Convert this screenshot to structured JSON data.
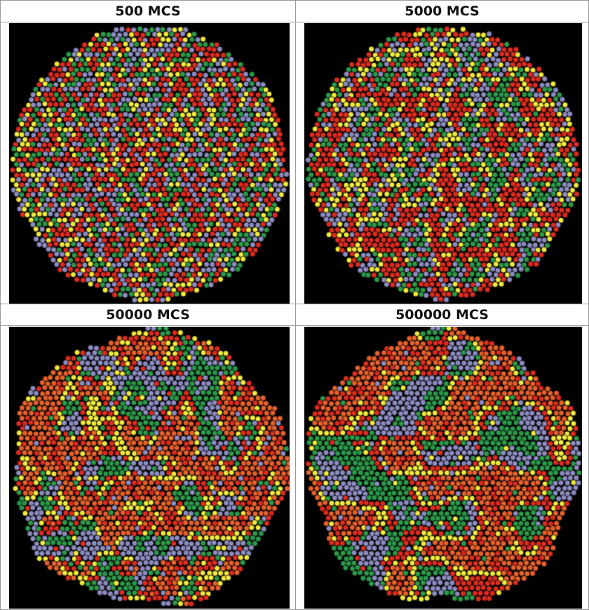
{
  "panels": [
    {
      "label": "500 MCS"
    },
    {
      "label": "5000 MCS"
    },
    {
      "label": "50000 MCS"
    },
    {
      "label": "500000 MCS"
    }
  ],
  "colors": {
    "background": "#000000",
    "red": "#e02a1e",
    "orange": "#e8602a",
    "yellow": "#f2ea3a",
    "green": "#2a9a48",
    "lavender": "#8c8cc2",
    "outline": "#0a0a0a"
  }
}
